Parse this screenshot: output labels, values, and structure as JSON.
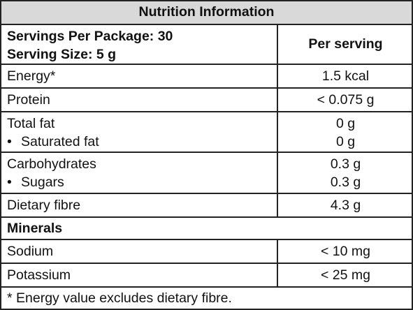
{
  "title": "Nutrition Information",
  "header": {
    "servings_per_package": "Servings Per Package: 30",
    "serving_size": "Serving Size: 5 g",
    "column": "Per serving"
  },
  "rows": {
    "energy": {
      "label": "Energy*",
      "value": "1.5 kcal"
    },
    "protein": {
      "label": "Protein",
      "value": "< 0.075 g"
    },
    "total_fat": {
      "label": "Total fat",
      "value": "0 g"
    },
    "saturated_fat": {
      "label": "Saturated fat",
      "value": "0 g"
    },
    "carbohydrates": {
      "label": "Carbohydrates",
      "value": "0.3 g"
    },
    "sugars": {
      "label": "Sugars",
      "value": "0.3 g"
    },
    "dietary_fibre": {
      "label": "Dietary fibre",
      "value": "4.3 g"
    },
    "minerals_heading": "Minerals",
    "sodium": {
      "label": "Sodium",
      "value": "< 10 mg"
    },
    "potassium": {
      "label": "Potassium",
      "value": "< 25 mg"
    }
  },
  "sub_bullet": "•",
  "footnote": "* Energy value excludes dietary fibre."
}
